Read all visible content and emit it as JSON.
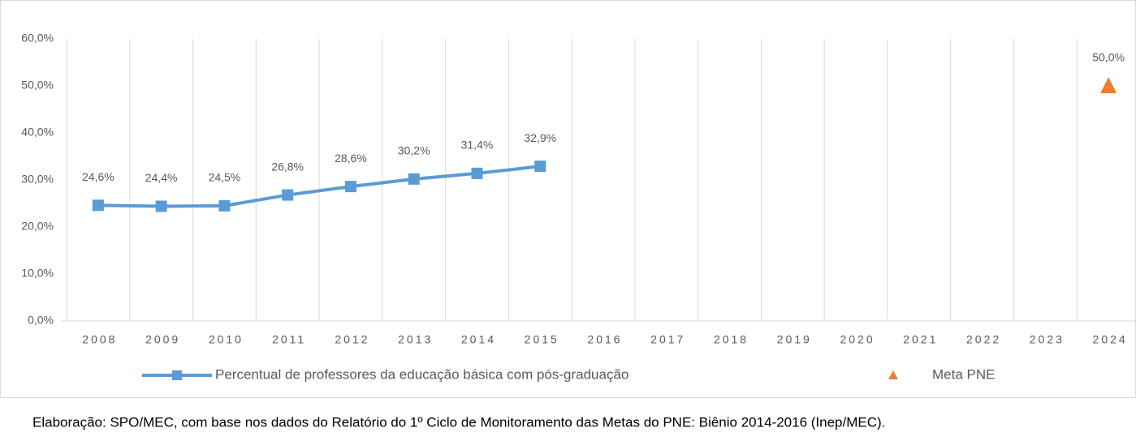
{
  "chart_data": {
    "type": "line",
    "categories": [
      "2008",
      "2009",
      "2010",
      "2011",
      "2012",
      "2013",
      "2014",
      "2015",
      "2016",
      "2017",
      "2018",
      "2019",
      "2020",
      "2021",
      "2022",
      "2023",
      "2024"
    ],
    "series": [
      {
        "name": "Percentual de professores da educação básica com pós-graduação",
        "color": "#5b9bd5",
        "line": true,
        "marker": "square",
        "values": [
          24.6,
          24.4,
          24.5,
          26.8,
          28.6,
          30.2,
          31.4,
          32.9,
          null,
          null,
          null,
          null,
          null,
          null,
          null,
          null,
          null
        ],
        "value_labels": [
          "24,6%",
          "24,4%",
          "24,5%",
          "26,8%",
          "28,6%",
          "30,2%",
          "31,4%",
          "32,9%",
          null,
          null,
          null,
          null,
          null,
          null,
          null,
          null,
          null
        ]
      },
      {
        "name": "Meta PNE",
        "color": "#ed7d31",
        "line": false,
        "marker": "triangle",
        "values": [
          null,
          null,
          null,
          null,
          null,
          null,
          null,
          null,
          null,
          null,
          null,
          null,
          null,
          null,
          null,
          null,
          50
        ],
        "value_labels": [
          null,
          null,
          null,
          null,
          null,
          null,
          null,
          null,
          null,
          null,
          null,
          null,
          null,
          null,
          null,
          null,
          "50,0%"
        ]
      }
    ],
    "ylim": [
      0,
      60
    ],
    "yticks": [
      {
        "value": 0,
        "label": "0,0%"
      },
      {
        "value": 10,
        "label": "10,0%"
      },
      {
        "value": 20,
        "label": "20,0%"
      },
      {
        "value": 30,
        "label": "30,0%"
      },
      {
        "value": 40,
        "label": "40,0%"
      },
      {
        "value": 50,
        "label": "50,0%"
      },
      {
        "value": 60,
        "label": "60,0%"
      }
    ],
    "grid": "vertical",
    "legend": "bottom",
    "source": "Elaboração: SPO/MEC, com base nos dados do Relatório do 1º Ciclo de Monitoramento das Metas do PNE: Biênio 2014-2016 (Inep/MEC)."
  }
}
